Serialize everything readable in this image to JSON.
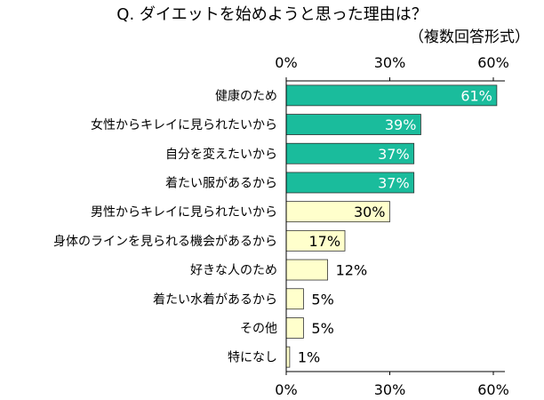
{
  "chart_data": {
    "type": "bar",
    "orientation": "horizontal",
    "title": "Q. ダイエットを始めようと思った理由は？",
    "subtitle": "（複数回答形式）",
    "categories": [
      "健康のため",
      "女性からキレイに見られたいから",
      "自分を変えたいから",
      "着たい服があるから",
      "男性からキレイに見られたいから",
      "身体のラインを見られる機会があるから",
      "好きな人のため",
      "着たい水着があるから",
      "その他",
      "特になし"
    ],
    "values": [
      61,
      39,
      37,
      37,
      30,
      17,
      12,
      5,
      5,
      1
    ],
    "value_labels": [
      "61%",
      "39%",
      "37%",
      "37%",
      "30%",
      "17%",
      "12%",
      "5%",
      "5%",
      "1%"
    ],
    "highlight_count": 4,
    "xlim": [
      0,
      65
    ],
    "xticks": [
      0,
      30,
      60
    ],
    "xtick_labels": [
      "0%",
      "30%",
      "60%"
    ],
    "xlabel": "",
    "ylabel": "",
    "grid": false,
    "colors": {
      "highlight_fill": "#1ABC9C",
      "normal_fill": "#FFFFCC",
      "bar_stroke": "#333333",
      "axis": "#000000",
      "highlight_label": "#ffffff",
      "normal_label": "#000000"
    }
  }
}
